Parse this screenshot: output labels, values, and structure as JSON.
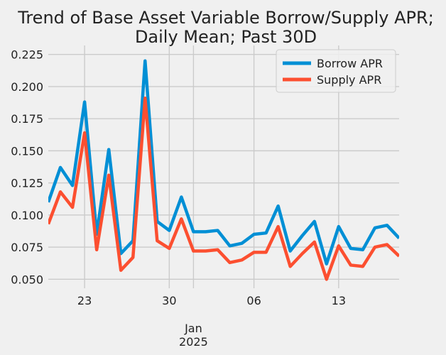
{
  "chart_data": {
    "type": "line",
    "title_lines": [
      "Trend of Base Asset Variable Borrow/Supply APR;",
      "Daily Mean; Past 30D"
    ],
    "xlabel": "",
    "ylabel": "",
    "x": [
      "2024-12-20",
      "2024-12-21",
      "2024-12-22",
      "2024-12-23",
      "2024-12-24",
      "2024-12-25",
      "2024-12-26",
      "2024-12-27",
      "2024-12-28",
      "2024-12-29",
      "2024-12-30",
      "2024-12-31",
      "2025-01-01",
      "2025-01-02",
      "2025-01-03",
      "2025-01-04",
      "2025-01-05",
      "2025-01-06",
      "2025-01-07",
      "2025-01-08",
      "2025-01-09",
      "2025-01-10",
      "2025-01-11",
      "2025-01-12",
      "2025-01-13",
      "2025-01-14",
      "2025-01-15",
      "2025-01-16",
      "2025-01-17",
      "2025-01-18"
    ],
    "series": [
      {
        "name": "Borrow APR",
        "color": "#008fd5",
        "values": [
          0.11,
          0.137,
          0.123,
          0.188,
          0.085,
          0.151,
          0.07,
          0.08,
          0.22,
          0.095,
          0.088,
          0.114,
          0.087,
          0.087,
          0.088,
          0.076,
          0.078,
          0.085,
          0.086,
          0.107,
          0.072,
          0.084,
          0.095,
          0.062,
          0.091,
          0.074,
          0.073,
          0.09,
          0.092,
          0.082
        ]
      },
      {
        "name": "Supply APR",
        "color": "#fc4f30",
        "values": [
          0.093,
          0.118,
          0.106,
          0.164,
          0.073,
          0.131,
          0.057,
          0.067,
          0.191,
          0.08,
          0.074,
          0.097,
          0.072,
          0.072,
          0.073,
          0.063,
          0.065,
          0.071,
          0.071,
          0.091,
          0.06,
          0.07,
          0.079,
          0.05,
          0.076,
          0.061,
          0.06,
          0.075,
          0.077,
          0.068
        ]
      }
    ],
    "xlim": [
      "2024-12-20",
      "2025-01-18"
    ],
    "ylim": [
      0.043,
      0.232
    ],
    "yticks": [
      0.05,
      0.075,
      0.1,
      0.125,
      0.15,
      0.175,
      0.2,
      0.225
    ],
    "ytick_labels": [
      "0.050",
      "0.075",
      "0.100",
      "0.125",
      "0.150",
      "0.175",
      "0.200",
      "0.225"
    ],
    "xticks": [
      {
        "date": "2024-12-23",
        "label": "23"
      },
      {
        "date": "2024-12-30",
        "label": "30"
      },
      {
        "date": "2025-01-06",
        "label": "06"
      },
      {
        "date": "2025-01-13",
        "label": "13"
      }
    ],
    "major_xtick": {
      "date": "2025-01-01",
      "label_lines": [
        "Jan",
        "2025"
      ]
    },
    "grid": true,
    "legend_position": "upper right",
    "style": {
      "background": "#f0f0f0",
      "grid_color": "#cbcbcb",
      "text_color": "#222222"
    }
  }
}
